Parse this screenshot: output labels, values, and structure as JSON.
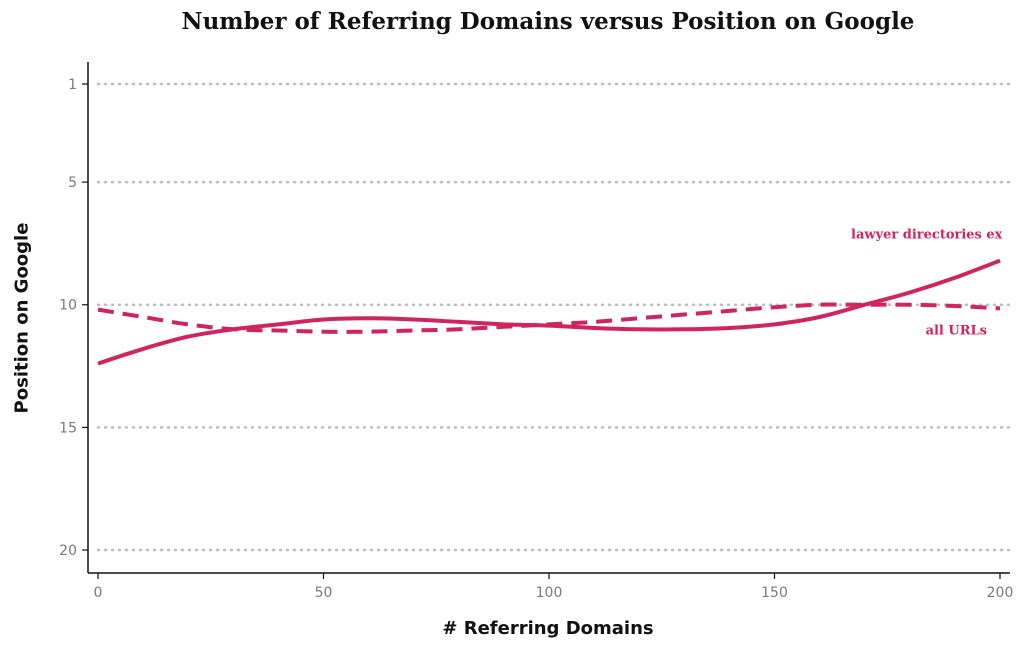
{
  "chart_data": {
    "type": "line",
    "title": "Number of Referring Domains versus Position on Google",
    "xlabel": "# Referring Domains",
    "ylabel": "Position on Google",
    "xlim": [
      0,
      200
    ],
    "ylim": [
      1,
      20
    ],
    "y_reversed": true,
    "x_ticks": [
      0,
      50,
      100,
      150,
      200
    ],
    "y_ticks": [
      1,
      5,
      10,
      15,
      20
    ],
    "grid": "horizontal dotted",
    "color": "#d0245e",
    "series": [
      {
        "name": "lawyer directories ex",
        "style": "solid",
        "x": [
          0,
          10,
          20,
          30,
          40,
          50,
          60,
          70,
          80,
          90,
          100,
          110,
          120,
          130,
          140,
          150,
          160,
          170,
          180,
          190,
          200
        ],
        "y": [
          12.4,
          11.8,
          11.3,
          11.0,
          10.8,
          10.6,
          10.55,
          10.6,
          10.7,
          10.8,
          10.85,
          10.95,
          11.0,
          11.0,
          10.95,
          10.8,
          10.5,
          10.0,
          9.5,
          8.9,
          8.2
        ]
      },
      {
        "name": "all URLs",
        "style": "dashed",
        "x": [
          0,
          10,
          20,
          30,
          40,
          50,
          60,
          70,
          80,
          90,
          100,
          110,
          120,
          130,
          140,
          150,
          160,
          170,
          180,
          190,
          200
        ],
        "y": [
          10.2,
          10.5,
          10.8,
          11.0,
          11.05,
          11.1,
          11.1,
          11.05,
          11.0,
          10.9,
          10.8,
          10.7,
          10.55,
          10.4,
          10.25,
          10.1,
          10.0,
          10.0,
          10.0,
          10.05,
          10.15
        ]
      }
    ]
  }
}
